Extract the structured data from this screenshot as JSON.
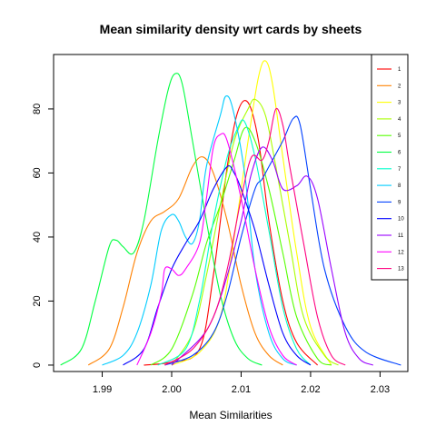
{
  "chart_data": {
    "type": "line",
    "title": "Mean similarity density wrt cards by sheets",
    "xlabel": "Mean Similarities",
    "ylabel": "",
    "xlim": [
      1.983,
      2.034
    ],
    "ylim": [
      -2,
      97
    ],
    "x_ticks": [
      1.99,
      2.0,
      2.01,
      2.02,
      2.03
    ],
    "x_tick_labels": [
      "1.99",
      "2.00",
      "2.01",
      "2.02",
      "2.03"
    ],
    "y_ticks": [
      0,
      20,
      40,
      60,
      80
    ],
    "y_tick_labels": [
      "0",
      "20",
      "40",
      "60",
      "80"
    ],
    "grid": false,
    "legend_position": "top-right",
    "series": [
      {
        "name": "1",
        "color": "#ff0000",
        "points": [
          [
            1.996,
            0
          ],
          [
            2.0,
            1
          ],
          [
            2.004,
            5
          ],
          [
            2.006,
            28
          ],
          [
            2.008,
            62
          ],
          [
            2.0095,
            79
          ],
          [
            2.011,
            82
          ],
          [
            2.0125,
            70
          ],
          [
            2.014,
            45
          ],
          [
            2.016,
            20
          ],
          [
            2.018,
            7
          ],
          [
            2.021,
            0
          ]
        ]
      },
      {
        "name": "2",
        "color": "#ff8000",
        "points": [
          [
            1.988,
            0
          ],
          [
            1.991,
            5
          ],
          [
            1.993,
            18
          ],
          [
            1.995,
            35
          ],
          [
            1.997,
            45
          ],
          [
            1.999,
            48
          ],
          [
            2.001,
            52
          ],
          [
            2.003,
            62
          ],
          [
            2.0045,
            65
          ],
          [
            2.006,
            60
          ],
          [
            2.008,
            45
          ],
          [
            2.01,
            25
          ],
          [
            2.012,
            10
          ],
          [
            2.014,
            3
          ],
          [
            2.016,
            0
          ]
        ]
      },
      {
        "name": "3",
        "color": "#ffff00",
        "points": [
          [
            2.0,
            0
          ],
          [
            2.004,
            4
          ],
          [
            2.007,
            15
          ],
          [
            2.009,
            40
          ],
          [
            2.011,
            70
          ],
          [
            2.0125,
            90
          ],
          [
            2.0135,
            95
          ],
          [
            2.0145,
            88
          ],
          [
            2.016,
            65
          ],
          [
            2.018,
            35
          ],
          [
            2.02,
            12
          ],
          [
            2.023,
            0
          ]
        ]
      },
      {
        "name": "4",
        "color": "#aaff00",
        "points": [
          [
            2.0,
            0
          ],
          [
            2.003,
            10
          ],
          [
            2.005,
            28
          ],
          [
            2.007,
            50
          ],
          [
            2.009,
            70
          ],
          [
            2.011,
            80
          ],
          [
            2.012,
            83
          ],
          [
            2.0135,
            78
          ],
          [
            2.015,
            62
          ],
          [
            2.017,
            38
          ],
          [
            2.019,
            15
          ],
          [
            2.022,
            3
          ],
          [
            2.024,
            0
          ]
        ]
      },
      {
        "name": "5",
        "color": "#55ff00",
        "points": [
          [
            1.997,
            0
          ],
          [
            2.0,
            5
          ],
          [
            2.003,
            22
          ],
          [
            2.005,
            38
          ],
          [
            2.007,
            50
          ],
          [
            2.009,
            64
          ],
          [
            2.0105,
            74
          ],
          [
            2.012,
            70
          ],
          [
            2.014,
            55
          ],
          [
            2.016,
            35
          ],
          [
            2.018,
            15
          ],
          [
            2.021,
            2
          ],
          [
            2.023,
            0
          ]
        ]
      },
      {
        "name": "6",
        "color": "#00ff40",
        "points": [
          [
            1.984,
            0
          ],
          [
            1.987,
            5
          ],
          [
            1.989,
            20
          ],
          [
            1.991,
            37
          ],
          [
            1.992,
            39
          ],
          [
            1.993,
            37
          ],
          [
            1.9945,
            35
          ],
          [
            1.996,
            45
          ],
          [
            1.998,
            70
          ],
          [
            1.9995,
            86
          ],
          [
            2.0005,
            91
          ],
          [
            2.0015,
            88
          ],
          [
            2.003,
            70
          ],
          [
            2.005,
            45
          ],
          [
            2.007,
            22
          ],
          [
            2.009,
            8
          ],
          [
            2.011,
            2
          ],
          [
            2.013,
            0
          ]
        ]
      },
      {
        "name": "7",
        "color": "#00ffcc",
        "points": [
          [
            1.998,
            0
          ],
          [
            2.002,
            5
          ],
          [
            2.004,
            20
          ],
          [
            2.006,
            45
          ],
          [
            2.008,
            65
          ],
          [
            2.0095,
            74
          ],
          [
            2.0105,
            76
          ],
          [
            2.012,
            65
          ],
          [
            2.014,
            42
          ],
          [
            2.016,
            18
          ],
          [
            2.018,
            5
          ],
          [
            2.02,
            0
          ]
        ]
      },
      {
        "name": "8",
        "color": "#00ccff",
        "points": [
          [
            1.99,
            0
          ],
          [
            1.993,
            3
          ],
          [
            1.995,
            10
          ],
          [
            1.997,
            25
          ],
          [
            1.9985,
            42
          ],
          [
            2.0,
            47
          ],
          [
            2.001,
            45
          ],
          [
            2.002,
            40
          ],
          [
            2.003,
            38
          ],
          [
            2.004,
            45
          ],
          [
            2.005,
            62
          ],
          [
            2.007,
            78
          ],
          [
            2.0078,
            84
          ],
          [
            2.0088,
            80
          ],
          [
            2.0105,
            60
          ],
          [
            2.012,
            30
          ],
          [
            2.014,
            10
          ],
          [
            2.016,
            2
          ],
          [
            2.018,
            0
          ]
        ]
      },
      {
        "name": "9",
        "color": "#0040ff",
        "points": [
          [
            1.999,
            0
          ],
          [
            2.003,
            3
          ],
          [
            2.006,
            10
          ],
          [
            2.008,
            22
          ],
          [
            2.01,
            40
          ],
          [
            2.012,
            55
          ],
          [
            2.013,
            58
          ],
          [
            2.014,
            62
          ],
          [
            2.016,
            70
          ],
          [
            2.0175,
            77
          ],
          [
            2.0185,
            75
          ],
          [
            2.02,
            55
          ],
          [
            2.022,
            30
          ],
          [
            2.025,
            12
          ],
          [
            2.028,
            4
          ],
          [
            2.033,
            0
          ]
        ]
      },
      {
        "name": "10",
        "color": "#0000ff",
        "points": [
          [
            1.993,
            0
          ],
          [
            1.996,
            5
          ],
          [
            1.998,
            18
          ],
          [
            2.0,
            30
          ],
          [
            2.002,
            38
          ],
          [
            2.004,
            45
          ],
          [
            2.006,
            55
          ],
          [
            2.008,
            62
          ],
          [
            2.009,
            60
          ],
          [
            2.01,
            55
          ],
          [
            2.012,
            42
          ],
          [
            2.014,
            25
          ],
          [
            2.016,
            10
          ],
          [
            2.018,
            3
          ],
          [
            2.02,
            0
          ]
        ]
      },
      {
        "name": "11",
        "color": "#9900ff",
        "points": [
          [
            2.0,
            0
          ],
          [
            2.004,
            8
          ],
          [
            2.006,
            15
          ],
          [
            2.008,
            28
          ],
          [
            2.01,
            45
          ],
          [
            2.0115,
            60
          ],
          [
            2.013,
            68
          ],
          [
            2.0145,
            64
          ],
          [
            2.016,
            55
          ],
          [
            2.018,
            56
          ],
          [
            2.0195,
            59
          ],
          [
            2.021,
            52
          ],
          [
            2.023,
            30
          ],
          [
            2.025,
            10
          ],
          [
            2.027,
            2
          ],
          [
            2.029,
            0
          ]
        ]
      },
      {
        "name": "12",
        "color": "#ff00ff",
        "points": [
          [
            1.995,
            0
          ],
          [
            1.997,
            10
          ],
          [
            1.9985,
            22
          ],
          [
            1.999,
            30
          ],
          [
            2.0,
            30
          ],
          [
            2.001,
            28
          ],
          [
            2.002,
            30
          ],
          [
            2.004,
            38
          ],
          [
            2.005,
            52
          ],
          [
            2.006,
            68
          ],
          [
            2.007,
            72
          ],
          [
            2.008,
            70
          ],
          [
            2.01,
            52
          ],
          [
            2.012,
            30
          ],
          [
            2.014,
            12
          ],
          [
            2.016,
            3
          ],
          [
            2.018,
            0
          ]
        ]
      },
      {
        "name": "13",
        "color": "#ff0080",
        "points": [
          [
            1.999,
            0
          ],
          [
            2.003,
            5
          ],
          [
            2.006,
            15
          ],
          [
            2.008,
            30
          ],
          [
            2.01,
            52
          ],
          [
            2.0115,
            65
          ],
          [
            2.013,
            64
          ],
          [
            2.014,
            70
          ],
          [
            2.015,
            80
          ],
          [
            2.016,
            75
          ],
          [
            2.017,
            62
          ],
          [
            2.019,
            38
          ],
          [
            2.021,
            15
          ],
          [
            2.023,
            3
          ],
          [
            2.025,
            0
          ]
        ]
      }
    ]
  }
}
